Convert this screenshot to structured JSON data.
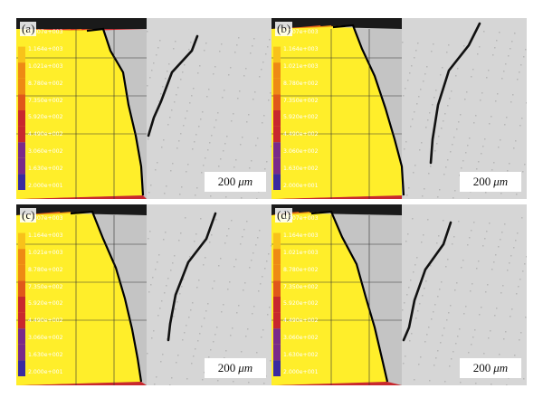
{
  "legend_values": [
    "1.307e+003",
    "1.164e+003",
    "1.021e+003",
    "8.780e+002",
    "7.350e+002",
    "5.920e+002",
    "4.490e+002",
    "3.060e+002",
    "1.630e+002",
    "2.000e+001"
  ],
  "scale_bar": {
    "value": "200",
    "unit": "μm"
  },
  "panels": [
    {
      "label": "(a)"
    },
    {
      "label": "(b)"
    },
    {
      "label": "(c)"
    },
    {
      "label": "(d)"
    }
  ],
  "colors": {
    "yellow": "#ffee2a",
    "gold": "#f8c21a",
    "orange": "#ee8a14",
    "dark_orange": "#e0581a",
    "red": "#c8282e",
    "purple": "#7a2a8a",
    "blue": "#3a2aa0",
    "cut_gray": "#c4c4c4",
    "metal": "#d6d6d6"
  }
}
